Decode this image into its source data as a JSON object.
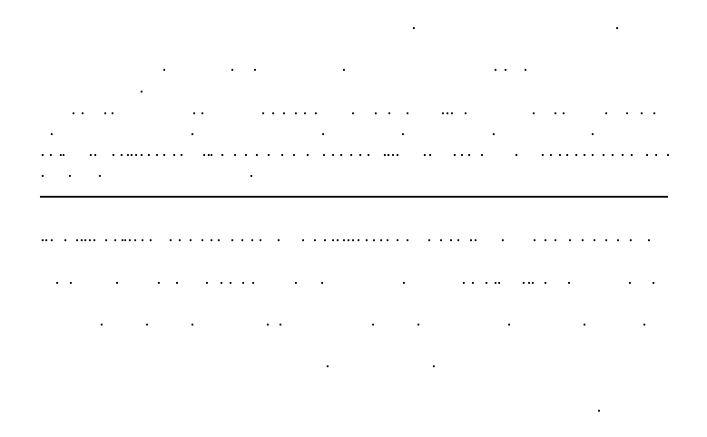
{
  "page": {
    "background": "#ffffff",
    "ink": "#000000"
  }
}
